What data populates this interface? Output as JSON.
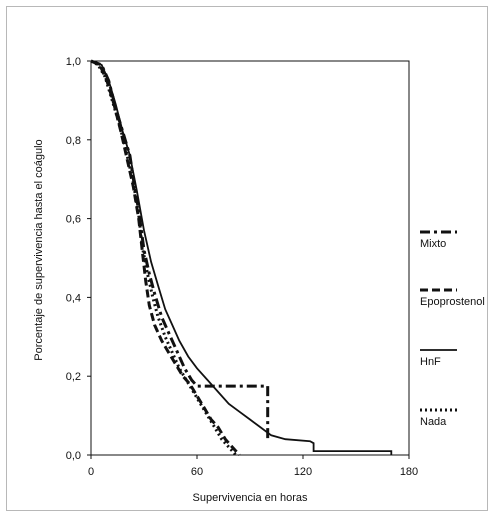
{
  "chart_data": {
    "type": "line",
    "title": "",
    "xlabel": "Supervivencia en horas",
    "ylabel": "Porcentaje de supervivencia hasta el coágulo",
    "xlim": [
      0,
      180
    ],
    "ylim": [
      0,
      1
    ],
    "xticks": [
      0,
      60,
      120,
      180
    ],
    "xtick_labels": [
      "0",
      "60",
      "120",
      "180"
    ],
    "yticks": [
      0,
      0.2,
      0.4,
      0.6,
      0.8,
      1.0
    ],
    "ytick_labels": [
      "0,0",
      "0,2",
      "0,4",
      "0,6",
      "0,8",
      "1,0"
    ],
    "grid": false,
    "legend_position": "right",
    "series": [
      {
        "name": "Mixto",
        "style": "dash-dot",
        "color": "#111111",
        "points": [
          [
            0,
            1
          ],
          [
            6,
            0.99
          ],
          [
            10,
            0.95
          ],
          [
            14,
            0.88
          ],
          [
            18,
            0.82
          ],
          [
            22,
            0.76
          ],
          [
            24,
            0.7
          ],
          [
            27,
            0.62
          ],
          [
            30,
            0.52
          ],
          [
            33,
            0.46
          ],
          [
            36,
            0.41
          ],
          [
            40,
            0.35
          ],
          [
            44,
            0.31
          ],
          [
            48,
            0.27
          ],
          [
            53,
            0.22
          ],
          [
            57,
            0.19
          ],
          [
            60,
            0.175
          ],
          [
            75,
            0.175
          ],
          [
            90,
            0.175
          ],
          [
            100,
            0.175
          ],
          [
            100,
            0.1
          ],
          [
            100,
            0.04
          ]
        ]
      },
      {
        "name": "Epoprostenol",
        "style": "dashed",
        "color": "#111111",
        "points": [
          [
            0,
            1
          ],
          [
            5,
            0.99
          ],
          [
            9,
            0.95
          ],
          [
            13,
            0.89
          ],
          [
            17,
            0.82
          ],
          [
            21,
            0.74
          ],
          [
            24,
            0.68
          ],
          [
            27,
            0.6
          ],
          [
            29,
            0.52
          ],
          [
            31,
            0.44
          ],
          [
            33,
            0.38
          ],
          [
            36,
            0.33
          ],
          [
            40,
            0.29
          ],
          [
            44,
            0.26
          ],
          [
            48,
            0.23
          ],
          [
            52,
            0.2
          ],
          [
            56,
            0.18
          ],
          [
            60,
            0.15
          ],
          [
            64,
            0.12
          ],
          [
            68,
            0.09
          ],
          [
            72,
            0.07
          ],
          [
            76,
            0.04
          ],
          [
            80,
            0.02
          ],
          [
            84,
            0.0
          ]
        ]
      },
      {
        "name": "HnF",
        "style": "solid",
        "color": "#111111",
        "points": [
          [
            0,
            1
          ],
          [
            6,
            0.99
          ],
          [
            10,
            0.95
          ],
          [
            14,
            0.89
          ],
          [
            18,
            0.82
          ],
          [
            22,
            0.76
          ],
          [
            26,
            0.67
          ],
          [
            30,
            0.57
          ],
          [
            34,
            0.49
          ],
          [
            38,
            0.43
          ],
          [
            42,
            0.37
          ],
          [
            46,
            0.33
          ],
          [
            50,
            0.29
          ],
          [
            55,
            0.25
          ],
          [
            60,
            0.22
          ],
          [
            66,
            0.19
          ],
          [
            72,
            0.16
          ],
          [
            78,
            0.13
          ],
          [
            84,
            0.11
          ],
          [
            90,
            0.09
          ],
          [
            96,
            0.07
          ],
          [
            102,
            0.05
          ],
          [
            110,
            0.04
          ],
          [
            124,
            0.035
          ],
          [
            126,
            0.03
          ],
          [
            126,
            0.01
          ],
          [
            170,
            0.01
          ],
          [
            170,
            0.0
          ]
        ]
      },
      {
        "name": "Nada",
        "style": "dotted",
        "color": "#111111",
        "points": [
          [
            0,
            1
          ],
          [
            4,
            0.99
          ],
          [
            8,
            0.96
          ],
          [
            12,
            0.9
          ],
          [
            16,
            0.84
          ],
          [
            20,
            0.77
          ],
          [
            24,
            0.69
          ],
          [
            27,
            0.61
          ],
          [
            29,
            0.53
          ],
          [
            32,
            0.46
          ],
          [
            35,
            0.4
          ],
          [
            38,
            0.35
          ],
          [
            42,
            0.3
          ],
          [
            46,
            0.26
          ],
          [
            50,
            0.22
          ],
          [
            54,
            0.19
          ],
          [
            58,
            0.16
          ],
          [
            62,
            0.13
          ],
          [
            66,
            0.1
          ],
          [
            70,
            0.07
          ],
          [
            74,
            0.04
          ],
          [
            78,
            0.02
          ],
          [
            82,
            0.0
          ]
        ]
      }
    ]
  }
}
